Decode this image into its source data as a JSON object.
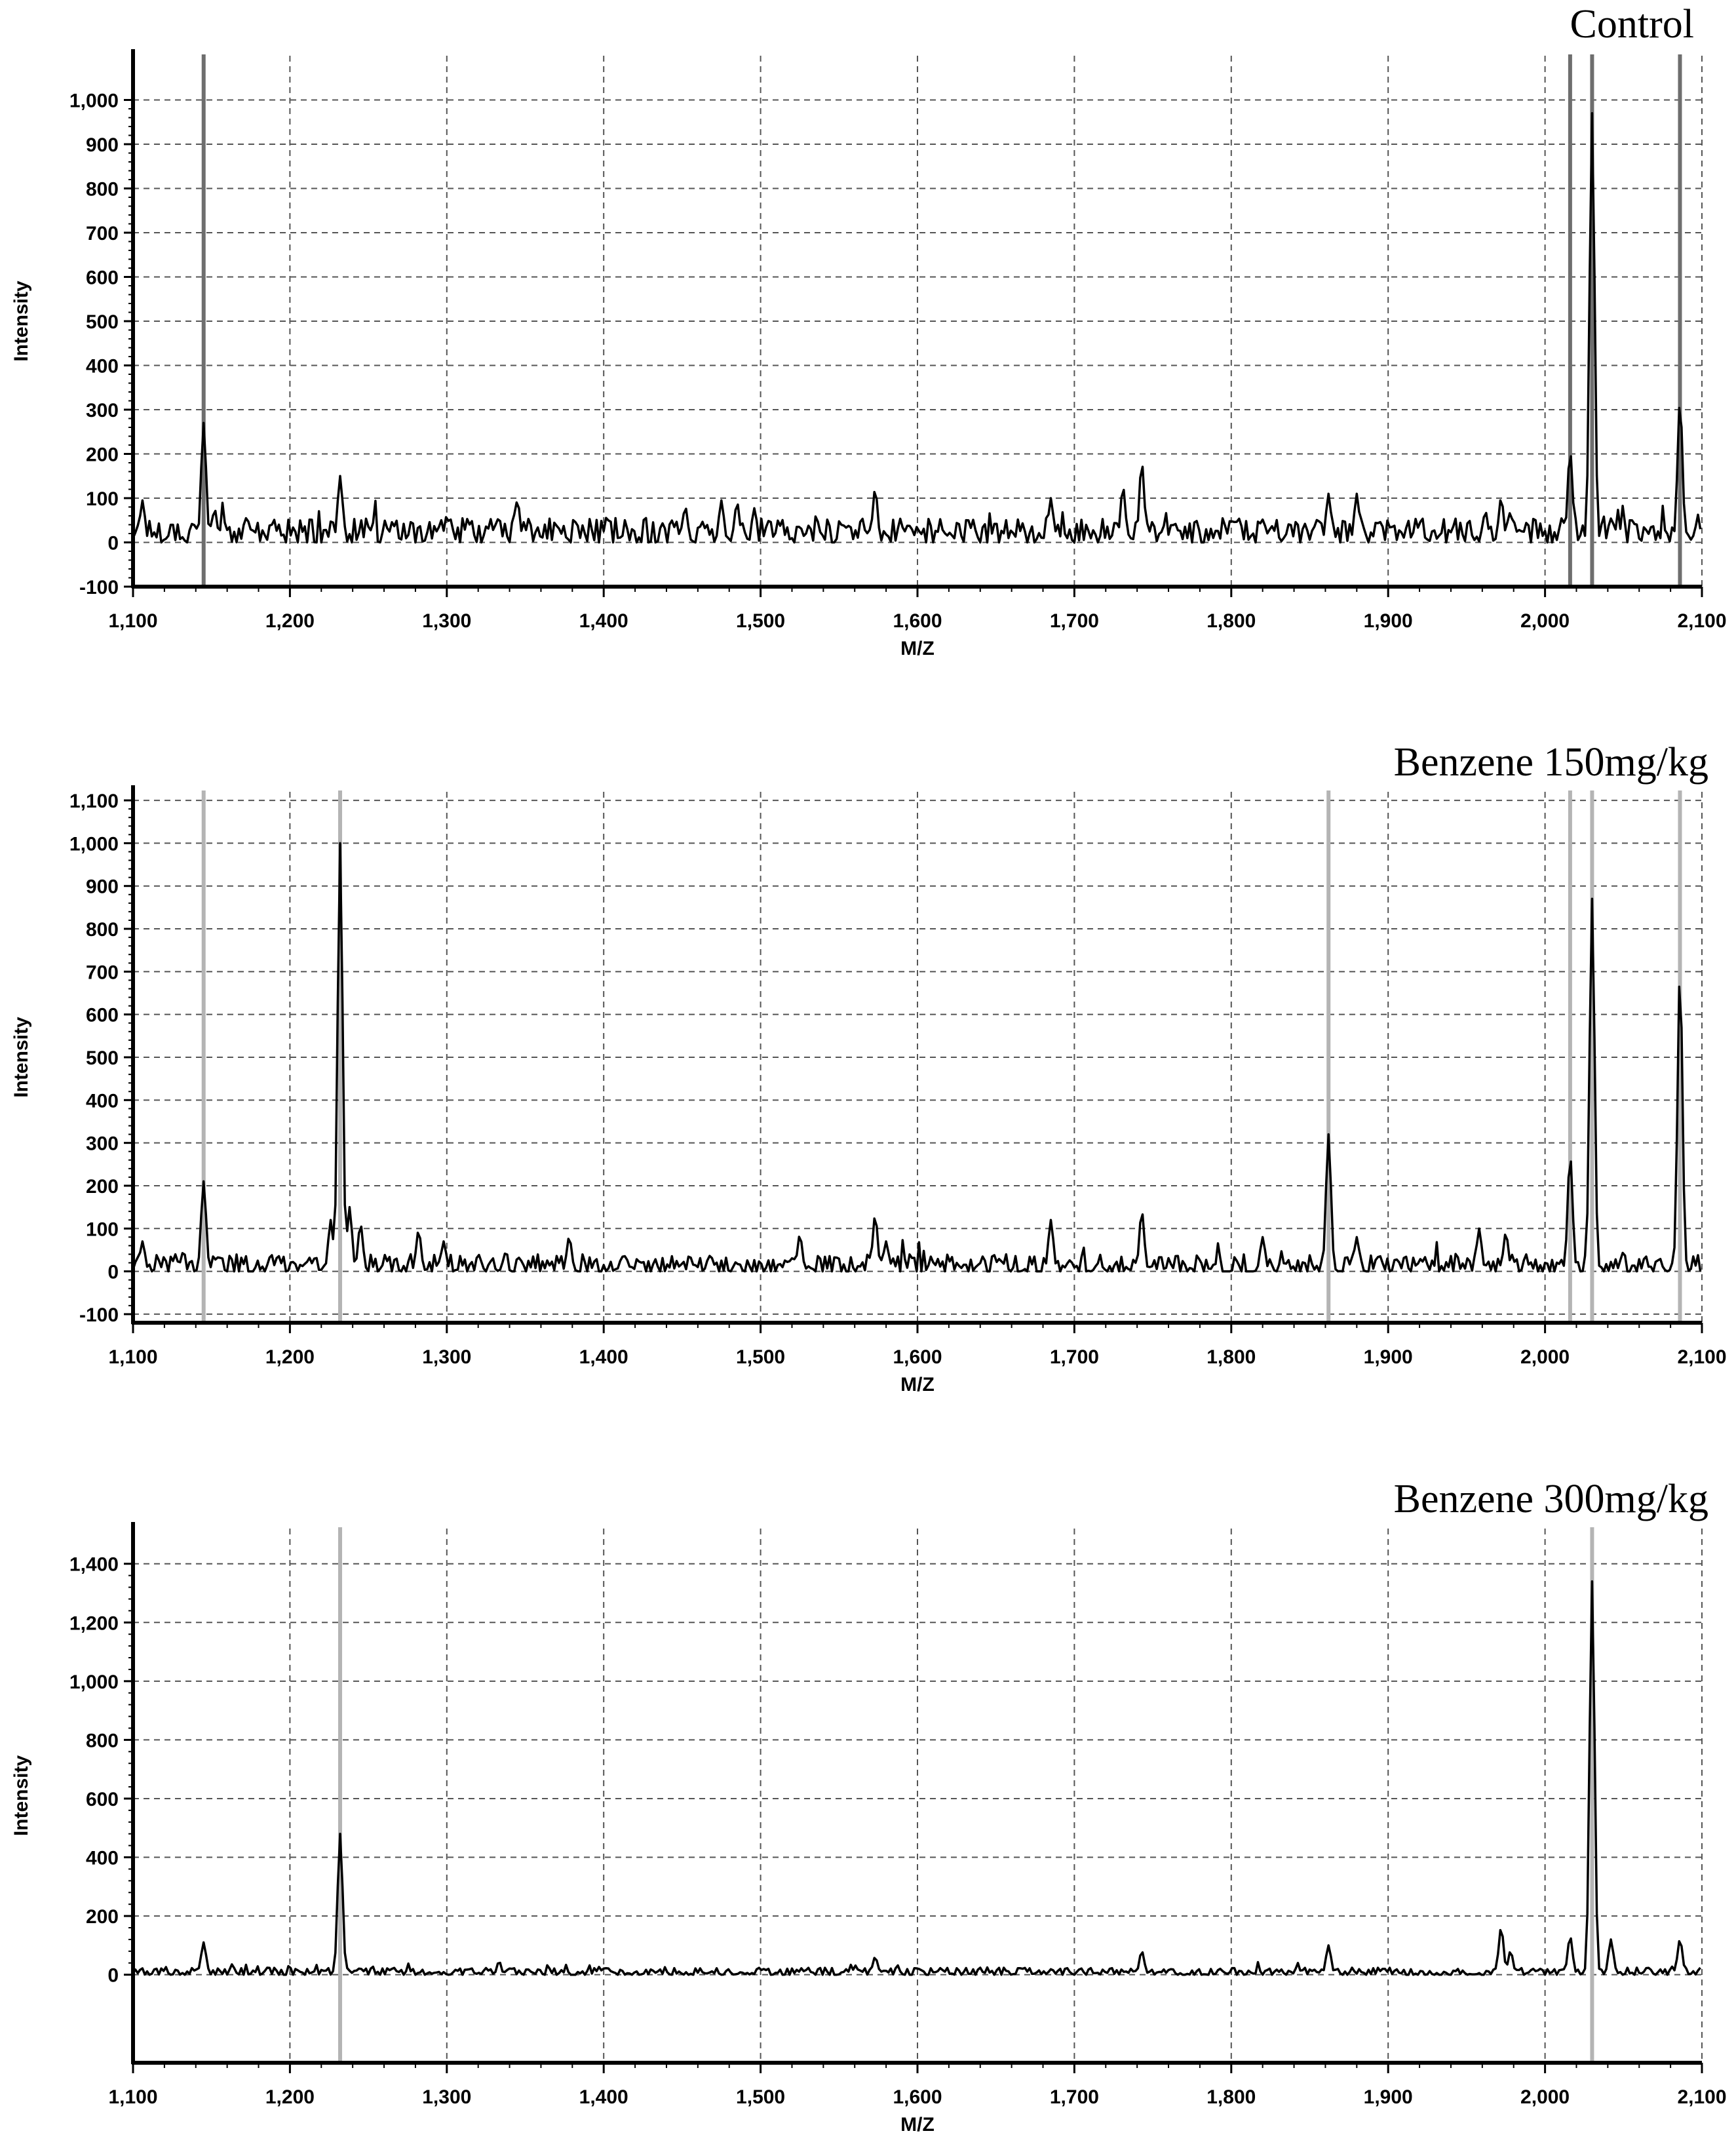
{
  "chart_data": [
    {
      "type": "line",
      "title": "Control",
      "xlabel": "M/Z",
      "ylabel": "Intensity",
      "xlim": [
        1100,
        2100
      ],
      "ylim": [
        -100,
        1100
      ],
      "x_ticks": [
        1100,
        1200,
        1300,
        1400,
        1500,
        1600,
        1700,
        1800,
        1900,
        2000,
        2100
      ],
      "x_tick_labels": [
        "1,100",
        "1,200",
        "1,300",
        "1,400",
        "1,500",
        "1,600",
        "1,700",
        "1,800",
        "1,900",
        "2,000",
        "2,100"
      ],
      "y_ticks": [
        -100,
        0,
        100,
        200,
        300,
        400,
        500,
        600,
        700,
        800,
        900,
        1000
      ],
      "y_tick_labels": [
        "-100",
        "0",
        "100",
        "200",
        "300",
        "400",
        "500",
        "600",
        "700",
        "800",
        "900",
        "1,000"
      ],
      "grid": true,
      "marker_lines_x": [
        1145,
        2016,
        2030,
        2086
      ],
      "marker_color": "#6e6e6e",
      "baseline": 25,
      "noise": 30,
      "peaks": [
        {
          "x": 1106,
          "y": 95
        },
        {
          "x": 1145,
          "y": 270
        },
        {
          "x": 1152,
          "y": 75
        },
        {
          "x": 1232,
          "y": 150
        },
        {
          "x": 1300,
          "y": 60
        },
        {
          "x": 1345,
          "y": 95
        },
        {
          "x": 1452,
          "y": 80
        },
        {
          "x": 1475,
          "y": 95
        },
        {
          "x": 1485,
          "y": 90
        },
        {
          "x": 1573,
          "y": 120
        },
        {
          "x": 1685,
          "y": 100
        },
        {
          "x": 1731,
          "y": 125
        },
        {
          "x": 1743,
          "y": 180
        },
        {
          "x": 1862,
          "y": 110
        },
        {
          "x": 1880,
          "y": 110
        },
        {
          "x": 1962,
          "y": 70
        },
        {
          "x": 1972,
          "y": 100
        },
        {
          "x": 2016,
          "y": 205
        },
        {
          "x": 2030,
          "y": 970
        },
        {
          "x": 2086,
          "y": 320
        }
      ]
    },
    {
      "type": "line",
      "title": "Benzene 150mg/kg",
      "xlabel": "M/Z",
      "ylabel": "Intensity",
      "xlim": [
        1100,
        2100
      ],
      "ylim": [
        -120,
        1120
      ],
      "x_ticks": [
        1100,
        1200,
        1300,
        1400,
        1500,
        1600,
        1700,
        1800,
        1900,
        2000,
        2100
      ],
      "x_tick_labels": [
        "1,100",
        "1,200",
        "1,300",
        "1,400",
        "1,500",
        "1,600",
        "1,700",
        "1,800",
        "1,900",
        "2,000",
        "2,100"
      ],
      "y_ticks": [
        -100,
        0,
        100,
        200,
        300,
        400,
        500,
        600,
        700,
        800,
        900,
        1000,
        1100
      ],
      "y_tick_labels": [
        "-100",
        "0",
        "100",
        "200",
        "300",
        "400",
        "500",
        "600",
        "700",
        "800",
        "900",
        "1,000",
        "1,100"
      ],
      "grid": true,
      "marker_lines_x": [
        1145,
        1232,
        1862,
        2016,
        2030,
        2086
      ],
      "marker_color": "#b4b4b4",
      "baseline": 15,
      "noise": 25,
      "peaks": [
        {
          "x": 1106,
          "y": 70
        },
        {
          "x": 1145,
          "y": 210
        },
        {
          "x": 1226,
          "y": 120
        },
        {
          "x": 1232,
          "y": 1000
        },
        {
          "x": 1238,
          "y": 150
        },
        {
          "x": 1245,
          "y": 110
        },
        {
          "x": 1282,
          "y": 95
        },
        {
          "x": 1298,
          "y": 70
        },
        {
          "x": 1378,
          "y": 80
        },
        {
          "x": 1525,
          "y": 85
        },
        {
          "x": 1573,
          "y": 130
        },
        {
          "x": 1580,
          "y": 70
        },
        {
          "x": 1685,
          "y": 120
        },
        {
          "x": 1743,
          "y": 140
        },
        {
          "x": 1820,
          "y": 80
        },
        {
          "x": 1862,
          "y": 320
        },
        {
          "x": 1880,
          "y": 80
        },
        {
          "x": 1958,
          "y": 100
        },
        {
          "x": 1975,
          "y": 90
        },
        {
          "x": 2016,
          "y": 270
        },
        {
          "x": 2030,
          "y": 870
        },
        {
          "x": 2086,
          "y": 700
        }
      ]
    },
    {
      "type": "line",
      "title": "Benzene 300mg/kg",
      "xlabel": "M/Z",
      "ylabel": "Intensity",
      "xlim": [
        1100,
        2100
      ],
      "ylim": [
        -300,
        1520
      ],
      "x_ticks": [
        1100,
        1200,
        1300,
        1400,
        1500,
        1600,
        1700,
        1800,
        1900,
        2000,
        2100
      ],
      "x_tick_labels": [
        "1,100",
        "1,200",
        "1,300",
        "1,400",
        "1,500",
        "1,600",
        "1,700",
        "1,800",
        "1,900",
        "2,000",
        "2,100"
      ],
      "y_ticks": [
        0,
        200,
        400,
        600,
        800,
        1000,
        1200,
        1400
      ],
      "y_tick_labels": [
        "0",
        "200",
        "400",
        "600",
        "800",
        "1,000",
        "1,200",
        "1,400"
      ],
      "grid": true,
      "marker_lines_x": [
        1232,
        2030
      ],
      "marker_color": "#b4b4b4",
      "baseline": 10,
      "noise": 14,
      "peaks": [
        {
          "x": 1145,
          "y": 110
        },
        {
          "x": 1232,
          "y": 480
        },
        {
          "x": 1573,
          "y": 60
        },
        {
          "x": 1743,
          "y": 80
        },
        {
          "x": 1862,
          "y": 100
        },
        {
          "x": 1972,
          "y": 160
        },
        {
          "x": 1978,
          "y": 80
        },
        {
          "x": 2016,
          "y": 130
        },
        {
          "x": 2030,
          "y": 1340
        },
        {
          "x": 2042,
          "y": 120
        },
        {
          "x": 2086,
          "y": 120
        }
      ]
    }
  ]
}
